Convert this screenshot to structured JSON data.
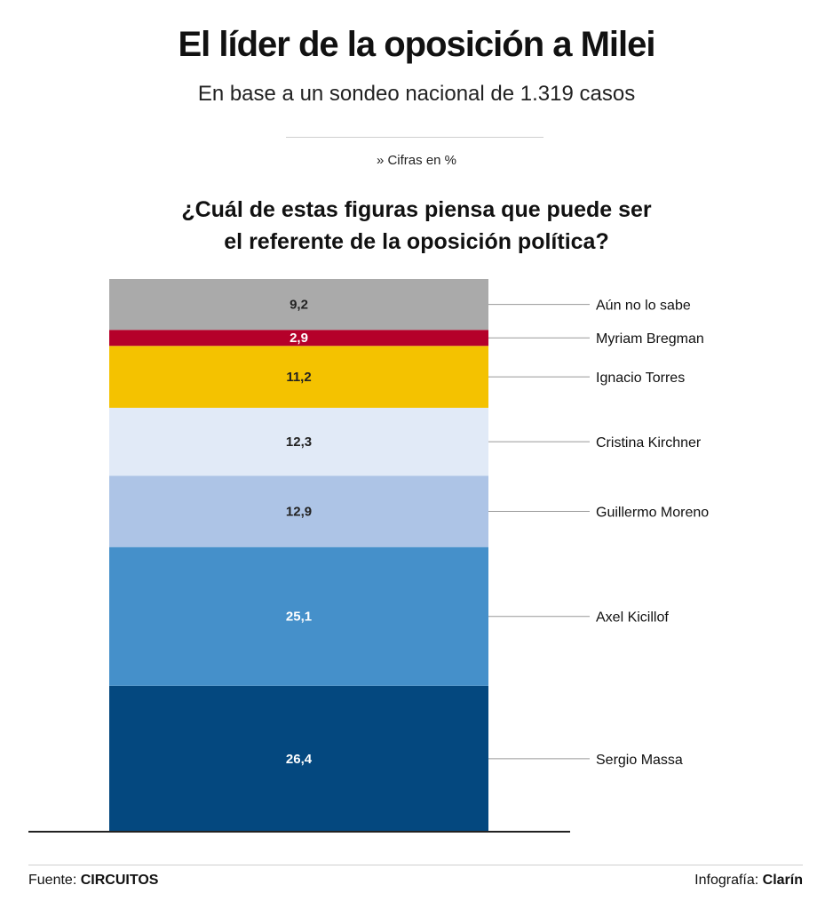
{
  "header": {
    "title": "El líder de la oposición a Milei",
    "subtitle": "En base a un sondeo nacional de 1.319 casos",
    "units_note": "» Cifras en %",
    "question_line1": "¿Cuál de estas figuras piensa que puede ser",
    "question_line2": "el referente de la oposición política?"
  },
  "chart_data": {
    "type": "bar",
    "stacked": true,
    "title": "¿Cuál de estas figuras piensa que puede ser el referente de la oposición política?",
    "units": "%",
    "segments": [
      {
        "name": "Sergio Massa",
        "value": 26.4,
        "label": "26,4",
        "color": "#04487f",
        "text_color": "#ffffff"
      },
      {
        "name": "Axel Kicillof",
        "value": 25.1,
        "label": "25,1",
        "color": "#4590ca",
        "text_color": "#ffffff"
      },
      {
        "name": "Guillermo Moreno",
        "value": 12.9,
        "label": "12,9",
        "color": "#adc4e6",
        "text_color": "#222222"
      },
      {
        "name": "Cristina Kirchner",
        "value": 12.3,
        "label": "12,3",
        "color": "#e1eaf7",
        "text_color": "#222222"
      },
      {
        "name": "Ignacio Torres",
        "value": 11.2,
        "label": "11,2",
        "color": "#f4c200",
        "text_color": "#222222"
      },
      {
        "name": "Myriam Bregman",
        "value": 2.9,
        "label": "2,9",
        "color": "#b5002a",
        "text_color": "#ffffff"
      },
      {
        "name": "Aún no lo sabe",
        "value": 9.2,
        "label": "9,2",
        "color": "#aaaaaa",
        "text_color": "#222222"
      }
    ]
  },
  "footer": {
    "source_prefix": "Fuente:",
    "source_name": "CIRCUITOS",
    "credit_prefix": "Infografía:",
    "credit_name": "Clarín"
  }
}
